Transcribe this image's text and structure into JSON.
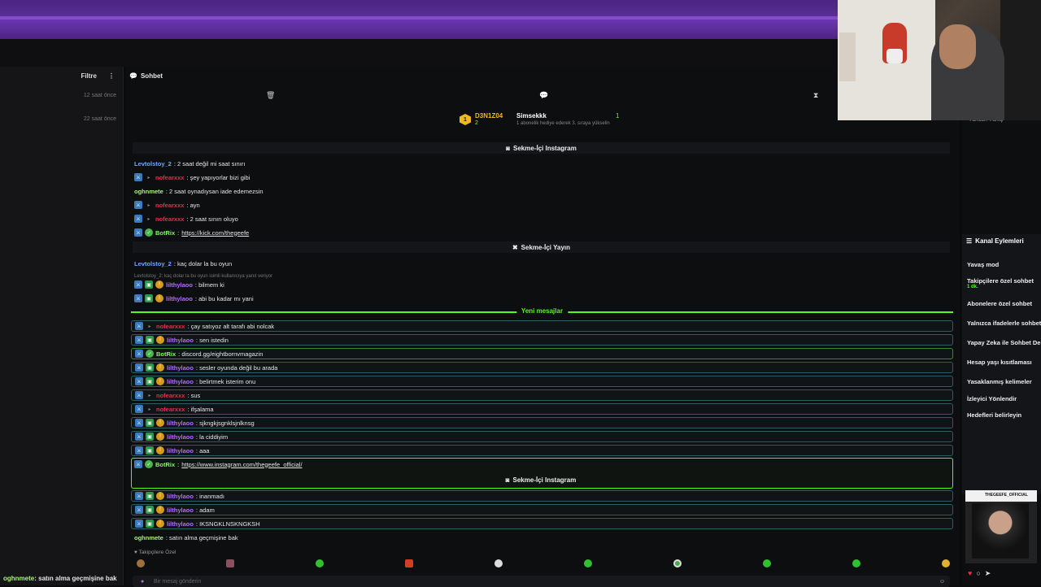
{
  "left_panel": {
    "filter_label": "Filtre",
    "times": [
      "12 saat önce",
      "22 saat önce"
    ],
    "bottom_user": "oghnmete",
    "bottom_text": ": satın alma geçmişine bak"
  },
  "chat": {
    "title": "Sohbet",
    "pinned": {
      "rank": "1",
      "user1": "D3N1Z04",
      "user1_count": "2",
      "user2": "Simsekkk",
      "user2_sub": "1 abonelik hediye ederek 3. sıraya yükselin",
      "user2_count": "1"
    },
    "sep_instagram": "Sekme-İçi Instagram",
    "sep_yayin": "Sekme-İçi Yayın",
    "reply_hint": "Levtolstoy_2: kaç dolar la bu oyun isimli kullanıcıya yanıt veriyor",
    "new_messages": "Yeni mesajlar",
    "followers_only": "Takipçilere Özel",
    "input_placeholder": "Bir mesaj gönderin",
    "messages_top": [
      {
        "user": "Levtolstoy_2",
        "text": ": 2 saat değil mi saat sınırı"
      },
      {
        "user": "nofearxxx",
        "text": ": şey yapıyorlar bizi gibi"
      },
      {
        "user": "oghnmete",
        "text": ": 2 saat oynadıysan iade edemezsin"
      },
      {
        "user": "nofearxxx",
        "text": ": ayn"
      },
      {
        "user": "nofearxxx",
        "text": ": 2 saat sınırı oluyo"
      },
      {
        "user": "BotRix",
        "text": ": ",
        "link": "https://kick.com/thegeefe"
      }
    ],
    "messages_mid": [
      {
        "user": "Levtolstoy_2",
        "text": ": kaç dolar la bu oyun"
      },
      {
        "user": "lilthylaoo",
        "text": ": bilmem ki"
      },
      {
        "user": "lilthylaoo",
        "text": ": abi bu kadar mı yani"
      }
    ],
    "messages_new": [
      {
        "user": "nofearxxx",
        "text": ": çay satıyoz alt tarafı abi nolcak"
      },
      {
        "user": "lilthylaoo",
        "text": ": sen istedin"
      },
      {
        "user": "BotRix",
        "text": ": discord.gg/eightbornvmagazin"
      },
      {
        "user": "lilthylaoo",
        "text": ": sesler oyunda değil bu arada"
      },
      {
        "user": "lilthylaoo",
        "text": ": belirtmek isterim onu"
      },
      {
        "user": "nofearxxx",
        "text": ": sus"
      },
      {
        "user": "nofearxxx",
        "text": ": ifşalama"
      },
      {
        "user": "lilthylaoo",
        "text": ": sjkngkjsgnklsjnlknsg"
      },
      {
        "user": "lilthylaoo",
        "text": ": la ciddiyim"
      },
      {
        "user": "lilthylaoo",
        "text": ": aaa"
      }
    ],
    "botrix_ig": {
      "user": "BotRix",
      "text": ": ",
      "link": "https://www.instagram.com/thegeefe_official/"
    },
    "messages_after": [
      {
        "user": "lilthylaoo",
        "text": ": inanmadı"
      },
      {
        "user": "lilthylaoo",
        "text": ": adam"
      },
      {
        "user": "lilthylaoo",
        "text": ": IKSNGKLNSKNGKSH"
      },
      {
        "user": "oghnmete",
        "text": ": satın alma geçmişine bak"
      }
    ]
  },
  "right_panel": {
    "languages": "Türkish   Türkç",
    "actions_title": "Kanal Eylemleri",
    "actions": [
      "Yavaş mod",
      "Takipçilere özel sohbet",
      "Abonelere özel sohbet",
      "Yalnızca ifadelerle sohbet",
      "Yapay Zeka ile Sohbet De",
      "Hesap yaşı kısıtlaması",
      "Yasaklanmış kelimeler",
      "İzleyici Yönlendir",
      "Hedefleri belirleyin"
    ],
    "followers_sub": "1 dk.",
    "ig_thumb_name": "THEGEEFE_OFFICIAL"
  },
  "colors": {
    "accent": "#53fc18",
    "topbar": "#5a2e97"
  }
}
